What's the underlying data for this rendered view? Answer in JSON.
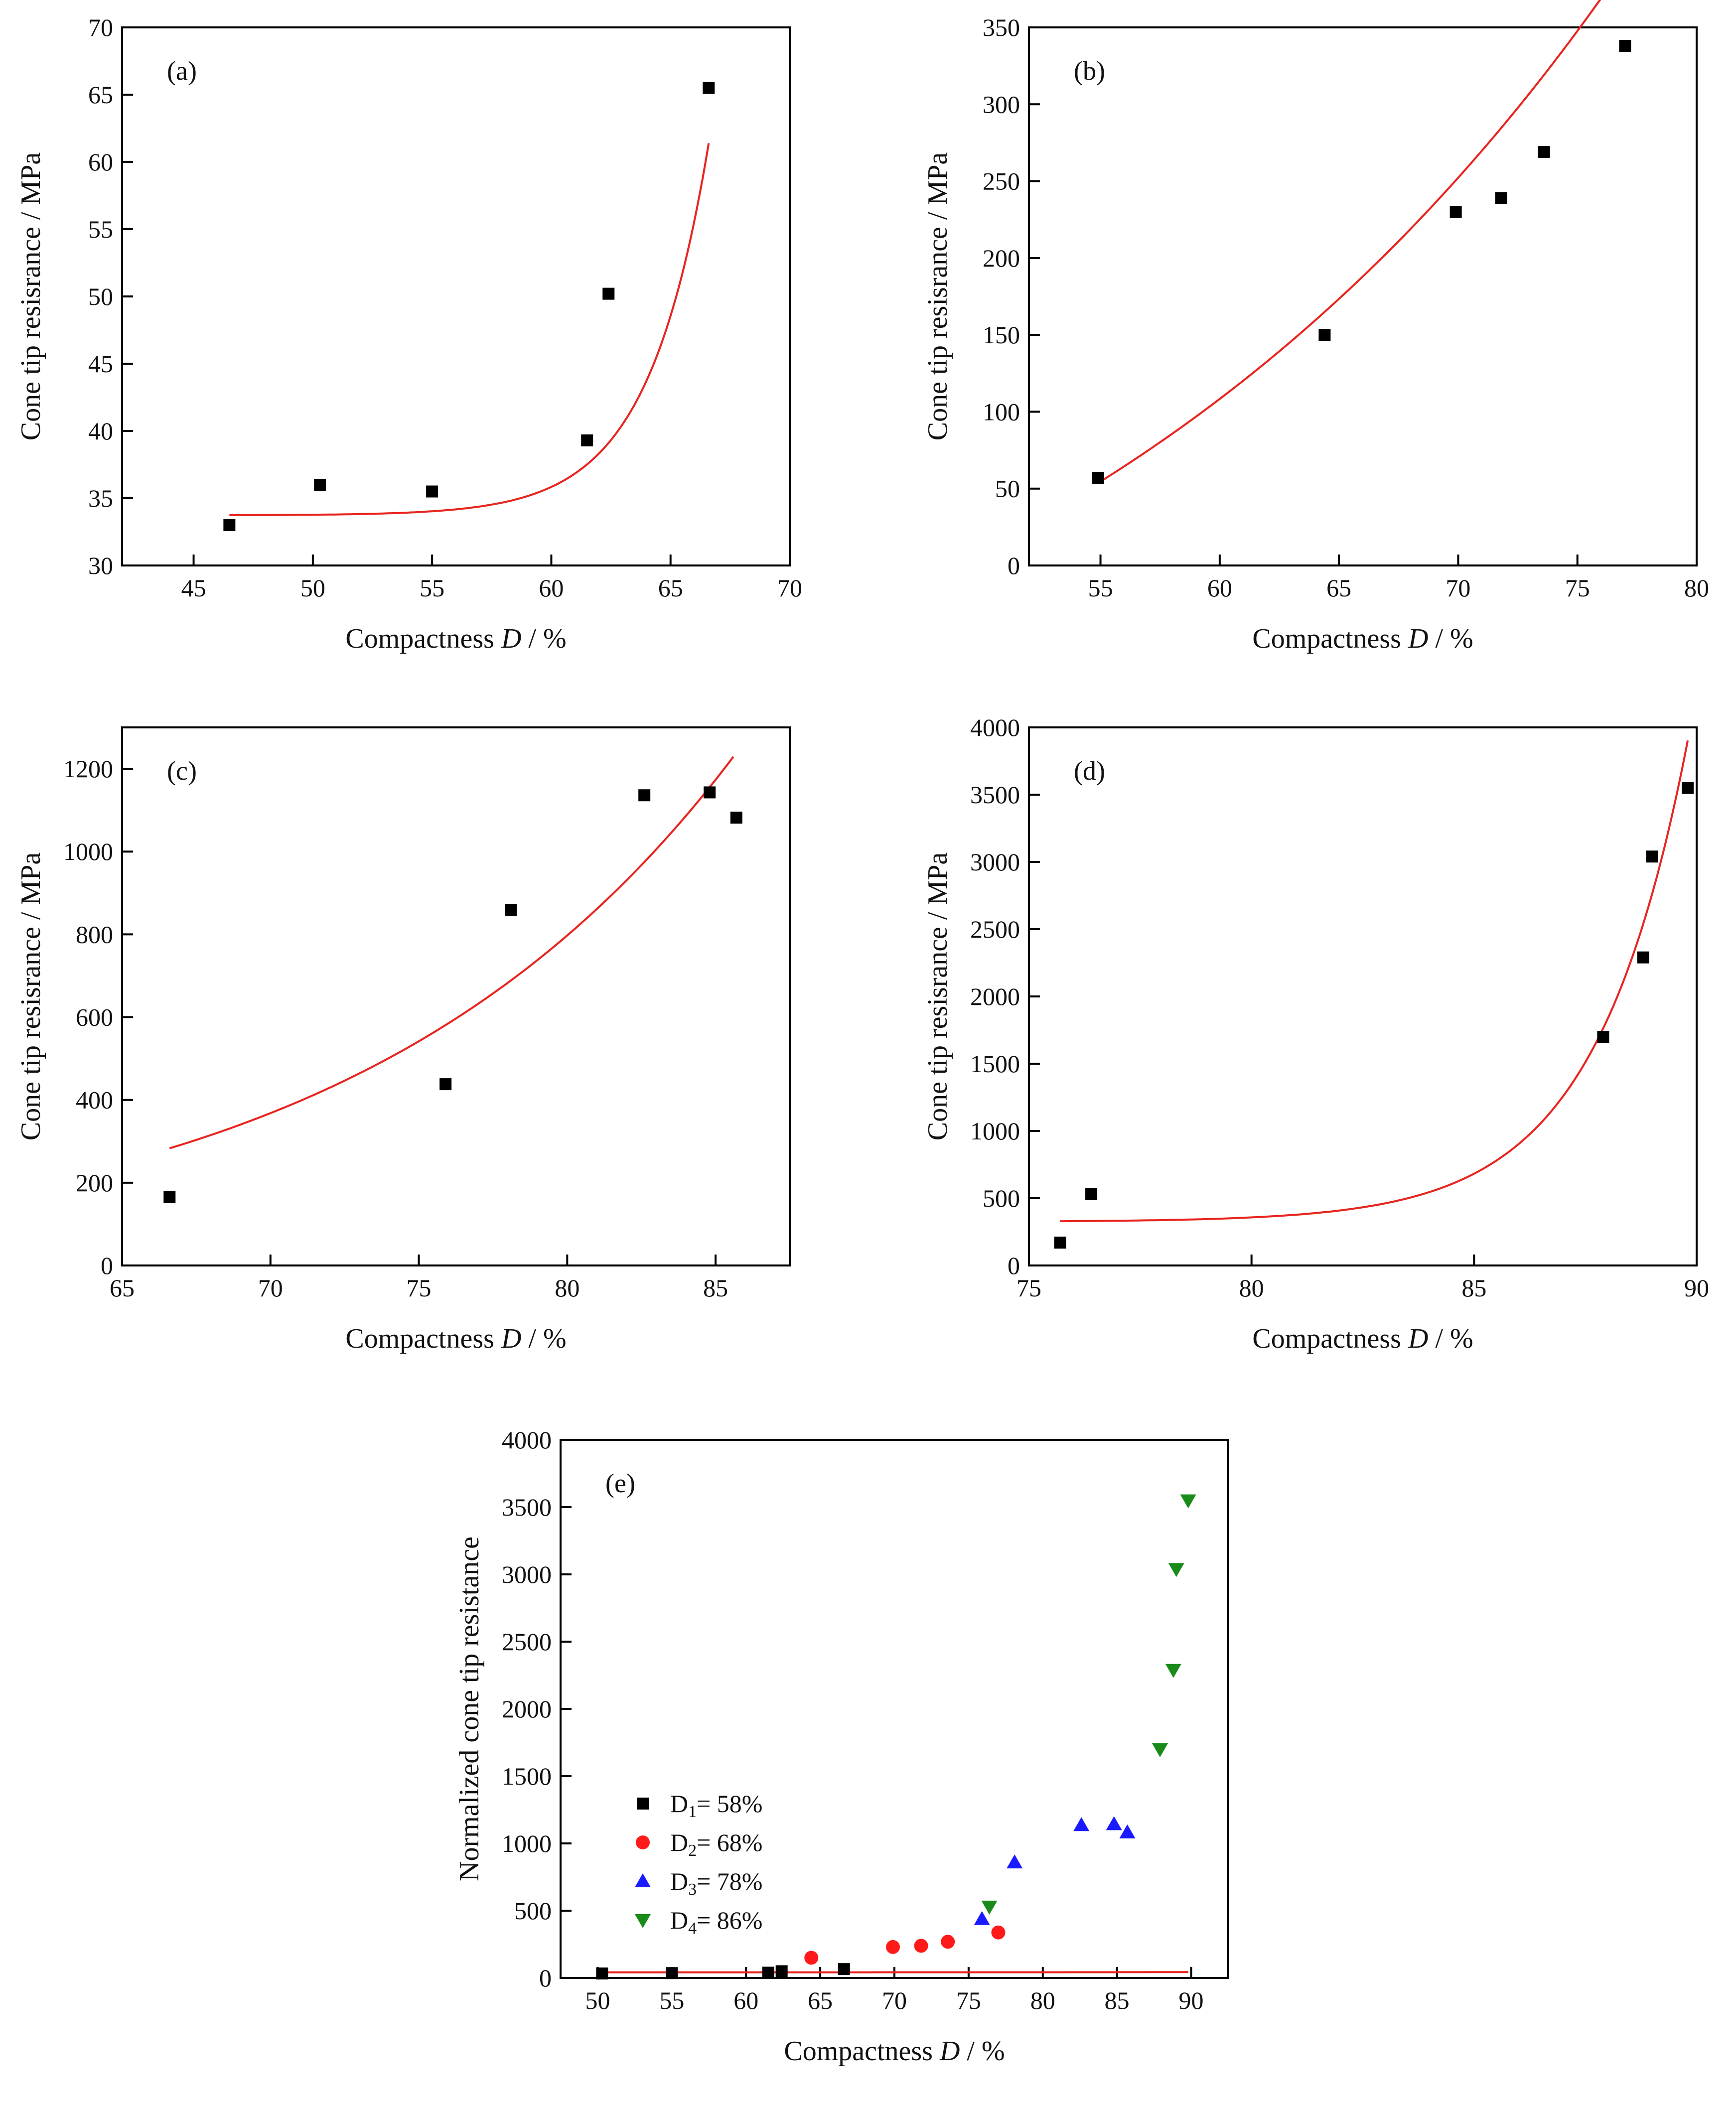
{
  "chart_data": [
    {
      "type": "scatter",
      "panel_label": "(a)",
      "xlabel_prefix": "Compactness ",
      "xlabel_var": "D",
      "xlabel_suffix": " / %",
      "ylabel": "Cone tip resisrance / MPa",
      "xlim": [
        42,
        70
      ],
      "ylim": [
        30,
        70
      ],
      "xticks": [
        45,
        50,
        55,
        60,
        65,
        70
      ],
      "yticks": [
        30,
        35,
        40,
        45,
        50,
        55,
        60,
        65,
        70
      ],
      "series": [
        {
          "name": "data",
          "marker": "square",
          "color": "#000000",
          "x": [
            46.5,
            50.3,
            55.0,
            61.5,
            62.4,
            66.6
          ],
          "y": [
            33.0,
            36.0,
            35.5,
            39.3,
            50.2,
            65.5
          ]
        }
      ],
      "fit": {
        "type": "exp",
        "a": 33.73,
        "b": 0.0093,
        "c": 0.3,
        "x0": 46.5,
        "x1": 66.6,
        "color": "#e8241f"
      }
    },
    {
      "type": "scatter",
      "panel_label": "(b)",
      "xlabel_prefix": "Compactness ",
      "xlabel_var": "D",
      "xlabel_suffix": " / %",
      "ylabel": "Cone tip resisrance / MPa",
      "xlim": [
        52,
        80
      ],
      "ylim": [
        0,
        350
      ],
      "xticks": [
        55,
        60,
        65,
        70,
        75,
        80
      ],
      "yticks": [
        0,
        50,
        100,
        150,
        200,
        250,
        300,
        350
      ],
      "series": [
        {
          "name": "data",
          "marker": "square",
          "color": "#000000",
          "x": [
            54.9,
            64.4,
            69.9,
            71.8,
            73.6,
            77.0
          ],
          "y": [
            57,
            150,
            230,
            239,
            269,
            338
          ]
        }
      ],
      "fit": {
        "type": "exp",
        "a": -200,
        "b": 254.6,
        "c": 0.0383,
        "x0": 55.0,
        "x1": 77.0,
        "color": "#e8241f"
      }
    },
    {
      "type": "scatter",
      "panel_label": "(c)",
      "xlabel_prefix": "Compactness ",
      "xlabel_var": "D",
      "xlabel_suffix": " / %",
      "ylabel": "Cone tip resisrance / MPa",
      "xlim": [
        65,
        87.5
      ],
      "ylim": [
        0,
        1300
      ],
      "xticks": [
        65,
        70,
        75,
        80,
        85
      ],
      "yticks": [
        0,
        200,
        400,
        600,
        800,
        1000,
        1200
      ],
      "series": [
        {
          "name": "data",
          "marker": "square",
          "color": "#000000",
          "x": [
            66.6,
            75.9,
            78.1,
            82.6,
            84.8,
            85.7
          ],
          "y": [
            165,
            438,
            859,
            1136,
            1143,
            1082
          ]
        }
      ],
      "fit": {
        "type": "exp",
        "a": 0,
        "b": 283,
        "c": 0.0773,
        "x0": 66.6,
        "x1": 85.6,
        "color": "#e8241f"
      }
    },
    {
      "type": "scatter",
      "panel_label": "(d)",
      "xlabel_prefix": "Compactness ",
      "xlabel_var": "D",
      "xlabel_suffix": " / %",
      "ylabel": "Cone tip resisrance / MPa",
      "xlim": [
        75,
        90
      ],
      "ylim": [
        0,
        4000
      ],
      "xticks": [
        75,
        80,
        85,
        90
      ],
      "yticks": [
        0,
        500,
        1000,
        1500,
        2000,
        2500,
        3000,
        3500,
        4000
      ],
      "series": [
        {
          "name": "data",
          "marker": "square",
          "color": "#000000",
          "x": [
            75.7,
            76.4,
            87.9,
            88.8,
            89.0,
            89.8
          ],
          "y": [
            170,
            530,
            1700,
            2290,
            3040,
            3550
          ]
        }
      ],
      "fit": {
        "type": "exp",
        "a": 325,
        "b": 1370,
        "c": 0.48,
        "x0": 75.7,
        "x1": 89.8,
        "shift": 87.8,
        "color": "#e8241f"
      }
    },
    {
      "type": "scatter",
      "panel_label": "(e)",
      "xlabel_prefix": "Compactness ",
      "xlabel_var": "D",
      "xlabel_suffix": " / %",
      "ylabel": "Normalized cone tip resistance",
      "xlim": [
        47.5,
        92.5
      ],
      "ylim": [
        0,
        4000
      ],
      "xticks": [
        50,
        55,
        60,
        65,
        70,
        75,
        80,
        85,
        90
      ],
      "yticks": [
        0,
        500,
        1000,
        1500,
        2000,
        2500,
        3000,
        3500,
        4000
      ],
      "legend_position": "lower-left",
      "series": [
        {
          "name": "D1= 58%",
          "label_main": "D",
          "label_sub": "1",
          "label_rest": "= 58%",
          "marker": "square",
          "color": "#000000",
          "x": [
            50.3,
            55.0,
            61.5,
            62.4,
            66.6
          ],
          "y": [
            33,
            36,
            39,
            50,
            66
          ]
        },
        {
          "name": "D2= 68%",
          "label_main": "D",
          "label_sub": "2",
          "label_rest": "= 68%",
          "marker": "circle",
          "color": "#ff1a1a",
          "x": [
            64.4,
            69.9,
            71.8,
            73.6,
            77.0
          ],
          "y": [
            150,
            230,
            239,
            269,
            338
          ]
        },
        {
          "name": "D3= 78%",
          "label_main": "D",
          "label_sub": "3",
          "label_rest": "= 78%",
          "marker": "triangle-up",
          "color": "#1a1aff",
          "x": [
            75.9,
            78.1,
            82.6,
            84.8,
            85.7
          ],
          "y": [
            438,
            859,
            1136,
            1143,
            1082
          ]
        },
        {
          "name": "D4= 86%",
          "label_main": "D",
          "label_sub": "4",
          "label_rest": "= 86%",
          "marker": "triangle-down",
          "color": "#1a8a1a",
          "x": [
            76.4,
            87.9,
            88.8,
            89.0,
            89.8
          ],
          "y": [
            530,
            1700,
            2290,
            3040,
            3550
          ]
        }
      ],
      "fit": {
        "type": "exp",
        "a": 0,
        "b": 0.000173,
        "c": 0.1873,
        "x0": 50.0,
        "x1": 89.8,
        "color": "#e8241f"
      }
    }
  ]
}
